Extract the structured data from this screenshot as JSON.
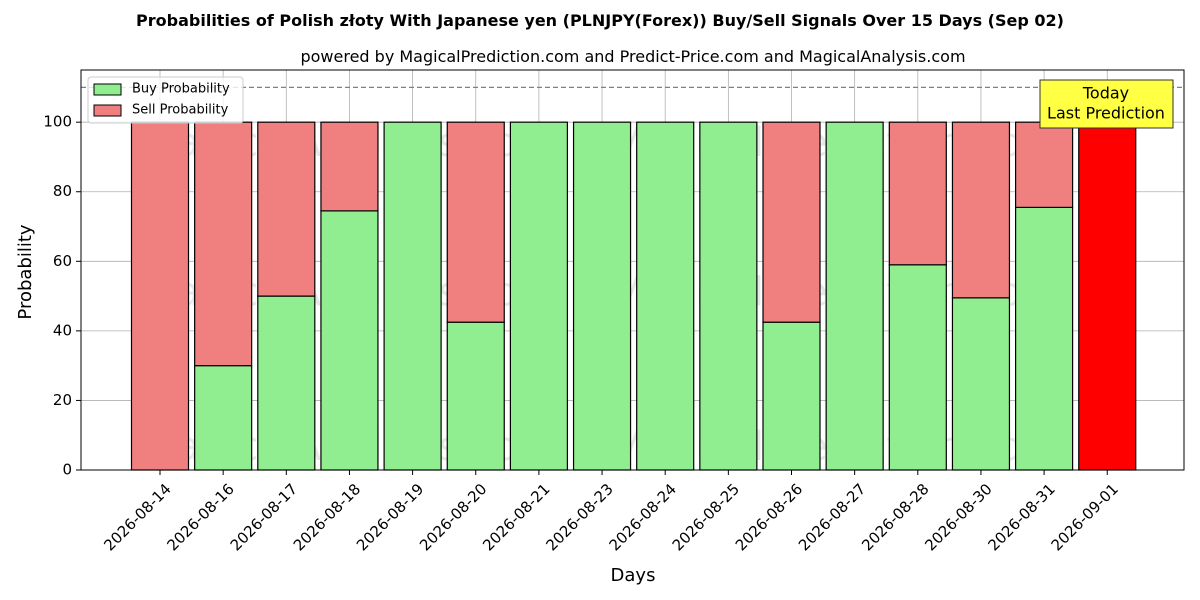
{
  "chart_data": {
    "type": "bar",
    "stacked": true,
    "title": "Probabilities of Polish złoty With Japanese yen (PLNJPY(Forex)) Buy/Sell Signals Over 15 Days (Sep 02)",
    "subtitle": "powered by MagicalPrediction.com and Predict-Price.com and MagicalAnalysis.com",
    "xlabel": "Days",
    "ylabel": "Probability",
    "ylim": [
      0,
      115
    ],
    "yticks": [
      0,
      20,
      40,
      60,
      80,
      100
    ],
    "reference_line": 110,
    "grid": true,
    "legend_position": "top-left",
    "categories": [
      "2026-08-14",
      "2026-08-16",
      "2026-08-17",
      "2026-08-18",
      "2026-08-19",
      "2026-08-20",
      "2026-08-21",
      "2026-08-23",
      "2026-08-24",
      "2026-08-25",
      "2026-08-26",
      "2026-08-27",
      "2026-08-28",
      "2026-08-30",
      "2026-08-31",
      "2026-09-01"
    ],
    "series": [
      {
        "name": "Buy Probability",
        "color": "#90ee90",
        "values": [
          0,
          30,
          50,
          74.5,
          100,
          42.5,
          100,
          100,
          100,
          100,
          42.5,
          100,
          59,
          49.5,
          75.5,
          0
        ]
      },
      {
        "name": "Sell Probability",
        "color": "#f08080",
        "values": [
          100,
          70,
          50,
          25.5,
          0,
          57.5,
          0,
          0,
          0,
          0,
          57.5,
          0,
          41,
          50.5,
          24.5,
          100
        ]
      }
    ],
    "highlight": {
      "index": 15,
      "color": "#ff0000"
    },
    "annotation": {
      "lines": [
        "Today",
        "Last Prediction"
      ],
      "background": "#ffff44"
    },
    "watermarks": [
      "MagicalAnalysis.com",
      "MagicalPrediction.com"
    ]
  }
}
